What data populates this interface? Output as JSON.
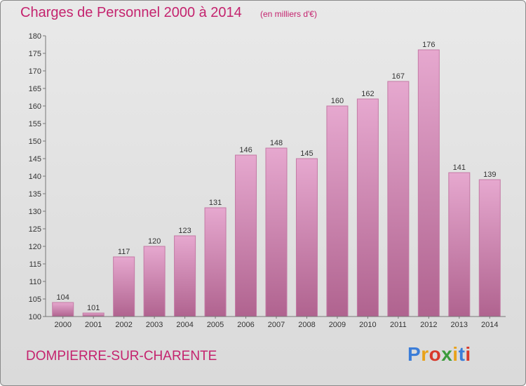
{
  "header": {
    "title": "Charges de Personnel 2000 à 2014",
    "unit": "(en milliers d'€)"
  },
  "footer": {
    "commune": "DOMPIERRE-SUR-CHARENTE",
    "logo_text": "Proxiti",
    "logo_colors": [
      "#3b7dd8",
      "#e9a21a",
      "#d8392b",
      "#3b9b3b",
      "#e9a21a",
      "#3b7dd8",
      "#d8392b"
    ]
  },
  "chart_data": {
    "type": "bar",
    "title": "Charges de Personnel 2000 à 2014",
    "categories": [
      "2000",
      "2001",
      "2002",
      "2003",
      "2004",
      "2005",
      "2006",
      "2007",
      "2008",
      "2009",
      "2010",
      "2011",
      "2012",
      "2013",
      "2014"
    ],
    "values": [
      104,
      101,
      117,
      120,
      123,
      131,
      146,
      148,
      145,
      160,
      162,
      167,
      176,
      141,
      139
    ],
    "ylim": [
      100,
      180
    ],
    "yticks": [
      100,
      105,
      110,
      115,
      120,
      125,
      130,
      135,
      140,
      145,
      150,
      155,
      160,
      165,
      170,
      175,
      180
    ],
    "grid": false,
    "colors": {
      "bar_top": "#e6a8cf",
      "bar_bottom": "#b0638f",
      "bar_stroke": "#c47aa5"
    }
  }
}
